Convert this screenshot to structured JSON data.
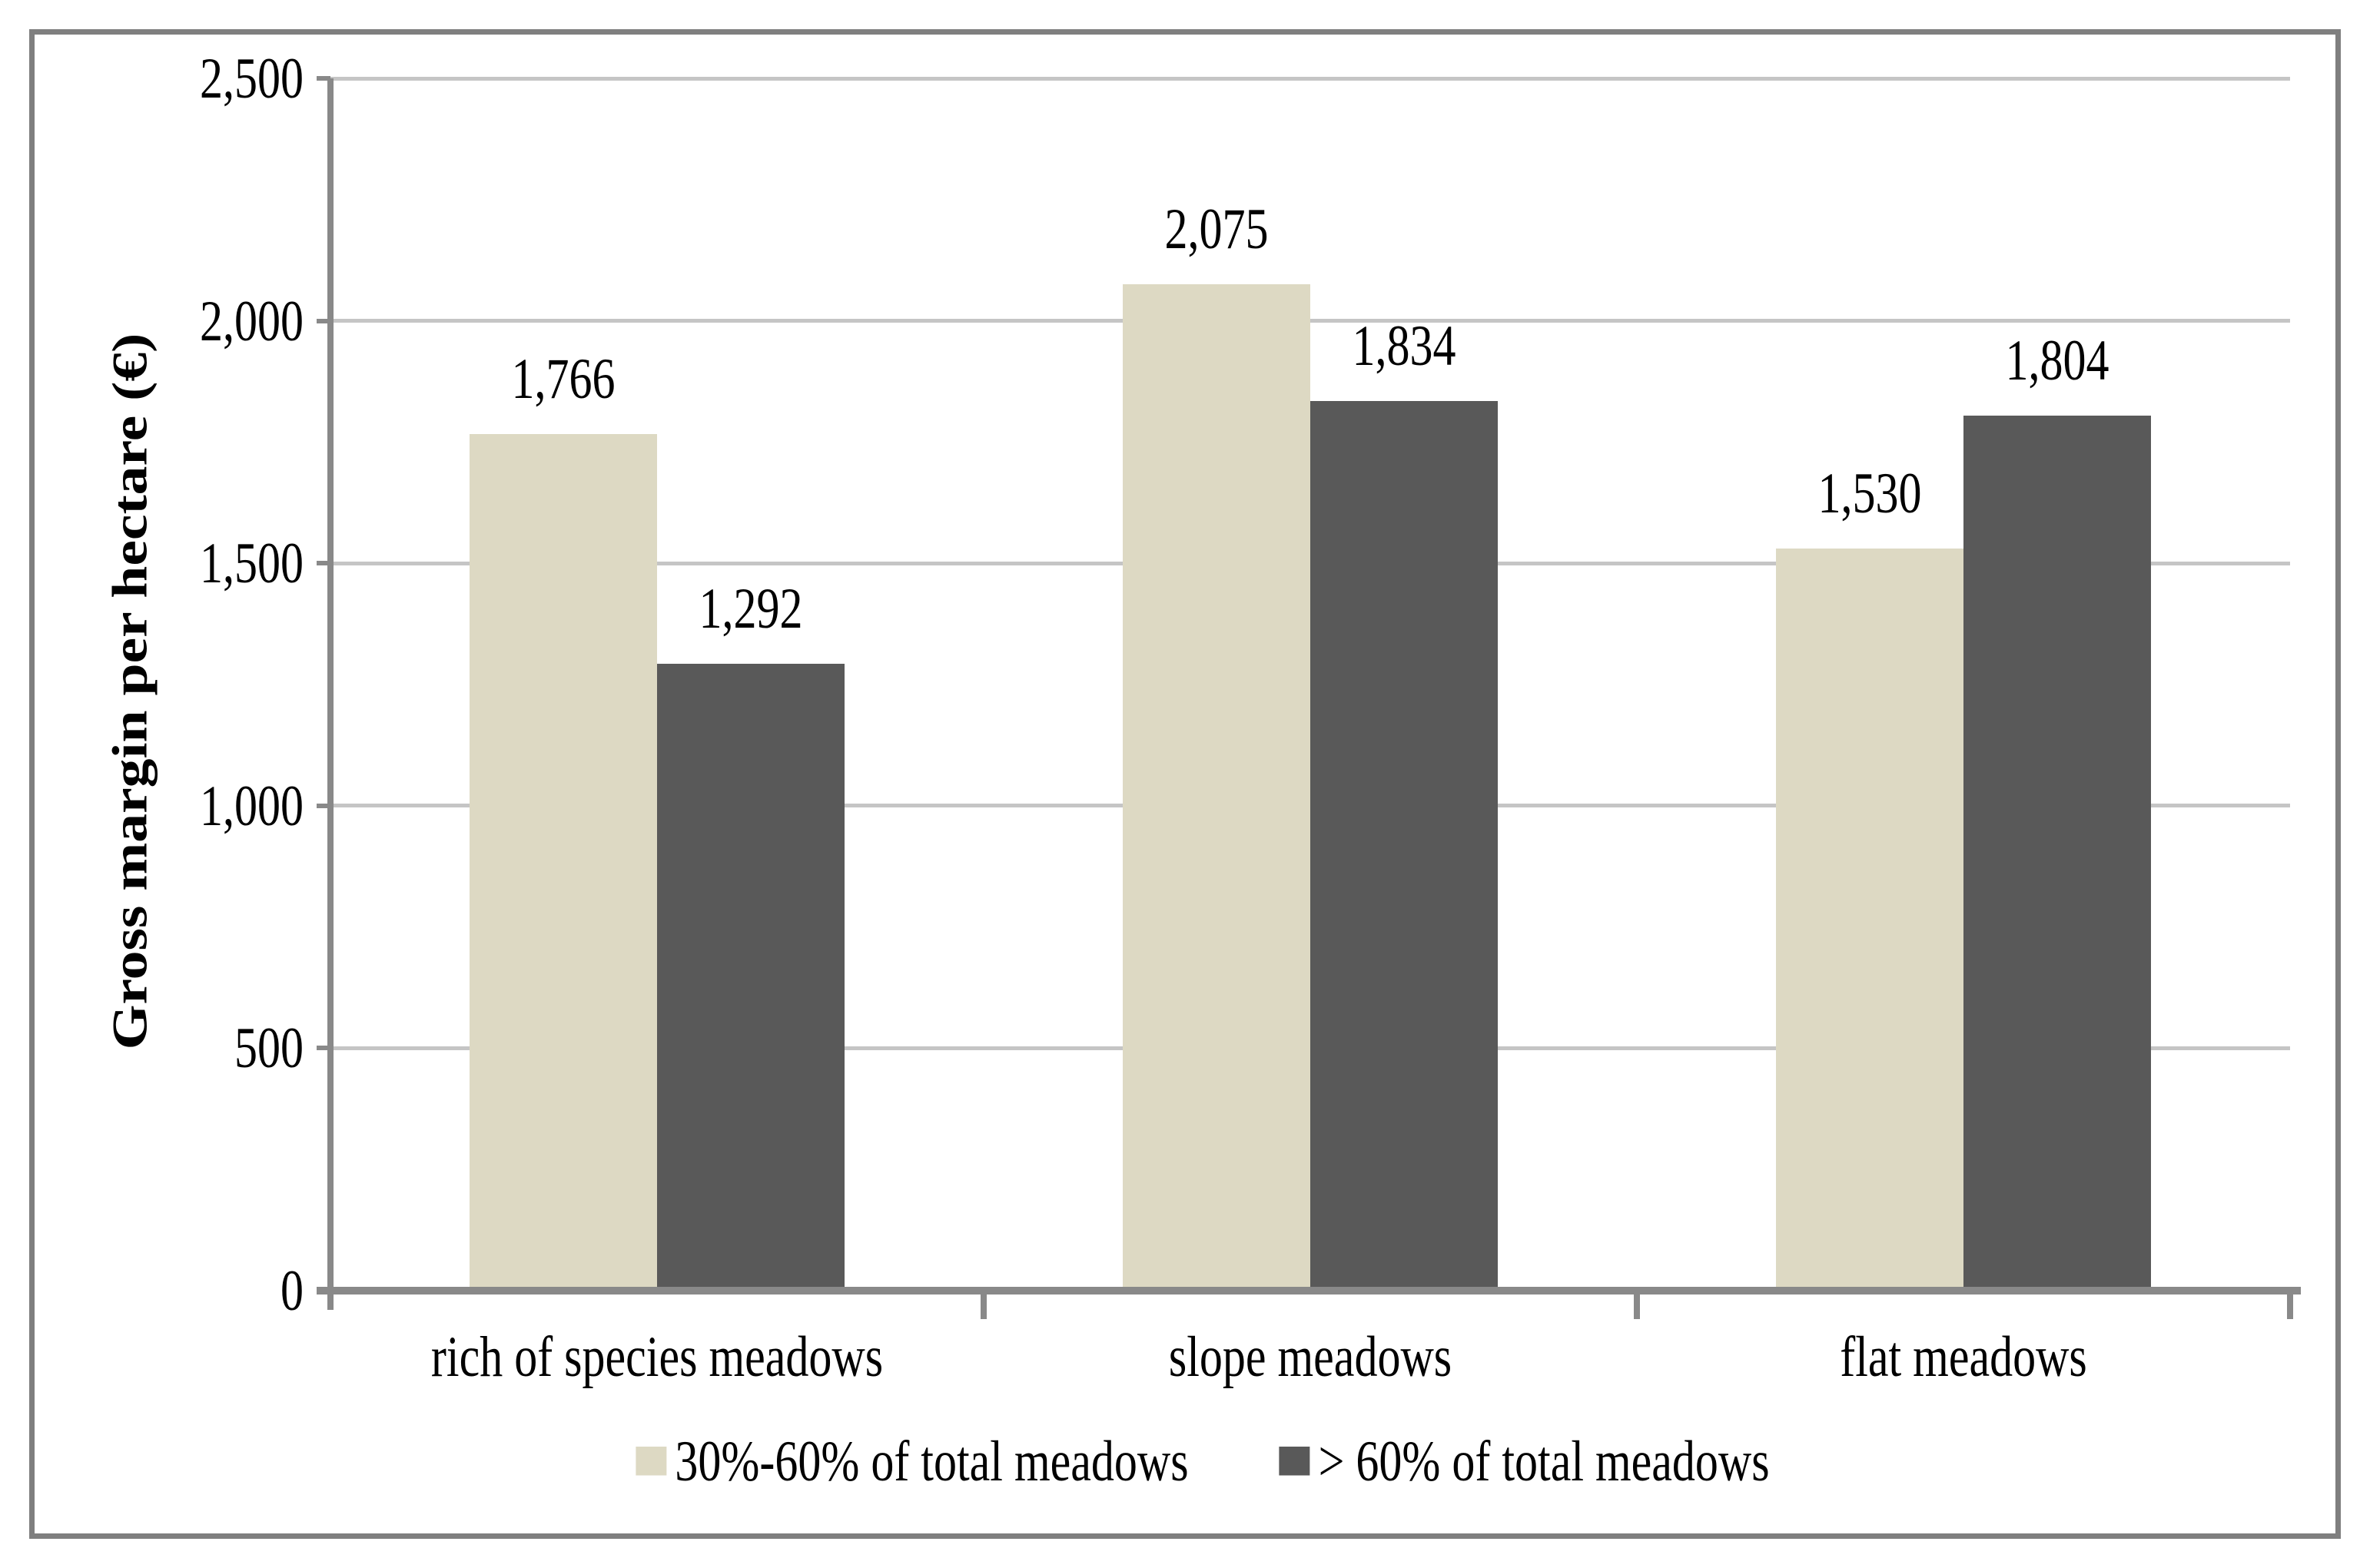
{
  "chart_data": {
    "type": "bar",
    "title": "",
    "xlabel": "",
    "ylabel": "Gross margin per hectare (€)",
    "categories": [
      "rich of species meadows",
      "slope meadows",
      "flat meadows"
    ],
    "series": [
      {
        "name": "30%-60% of total meadows",
        "color": "#DDD9C3",
        "values": [
          1766,
          2075,
          1530
        ]
      },
      {
        "name": "> 60% of total meadows",
        "color": "#595959",
        "values": [
          1292,
          1834,
          1804
        ]
      }
    ],
    "data_label_values": [
      [
        "1,766",
        "2,075",
        "1,530"
      ],
      [
        "1,292",
        "1,834",
        "1,804"
      ]
    ],
    "ytick_labels": [
      "0",
      "500",
      "1,000",
      "1,500",
      "2,000",
      "2,500"
    ],
    "yticks": [
      0,
      500,
      1000,
      1500,
      2000,
      2500
    ],
    "ylim": [
      0,
      2500
    ],
    "grid": "horizontal",
    "legend_position": "bottom-center",
    "data_labels": true,
    "colors": {
      "gridline": "#C5C5C5",
      "axis": "#898989",
      "frame_border": "#7F7F7F",
      "text": "#000000",
      "background": "#FFFFFF"
    }
  }
}
